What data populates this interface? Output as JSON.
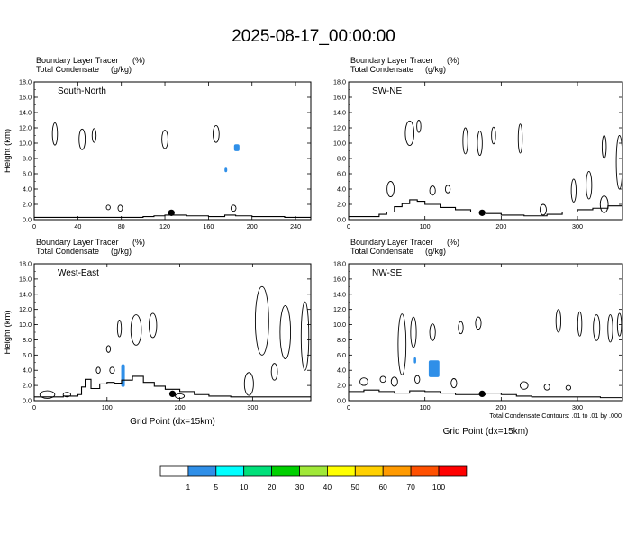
{
  "title": "2025-08-17_00:00:00",
  "colors": {
    "tracer": "#2f8fe8",
    "contour": "#000000"
  },
  "panels": [
    {
      "label": "South-North",
      "var1": "Boundary Layer Tracer",
      "unit1": "(%)",
      "var2": "Total Condensate",
      "unit2": "(g/kg)",
      "ylabel": "Height (km)",
      "xlabel": "",
      "ylim": [
        0,
        18
      ],
      "yticks": [
        "0.0",
        "2.0",
        "4.0",
        "6.0",
        "8.0",
        "10.0",
        "12.0",
        "14.0",
        "16.0",
        "18.0"
      ],
      "xlim": [
        0,
        254
      ],
      "xticks": [
        0,
        40,
        80,
        120,
        160,
        200,
        240
      ],
      "marker_x": 126,
      "pbl_height_km": [
        [
          0,
          0.3
        ],
        [
          30,
          0.3
        ],
        [
          60,
          0.3
        ],
        [
          90,
          0.3
        ],
        [
          100,
          0.4
        ],
        [
          110,
          0.5
        ],
        [
          120,
          0.6
        ],
        [
          140,
          0.5
        ],
        [
          160,
          0.4
        ],
        [
          175,
          0.6
        ],
        [
          185,
          0.5
        ],
        [
          200,
          0.4
        ],
        [
          230,
          0.3
        ],
        [
          254,
          0.3
        ]
      ],
      "tracer_blobs": [
        {
          "x": 186,
          "y": 9.4,
          "w": 5,
          "h": 0.9
        },
        {
          "x": 176,
          "y": 6.5,
          "w": 2.5,
          "h": 0.6
        }
      ],
      "clouds": [
        {
          "x": 19,
          "y": 11.2,
          "w": 3,
          "h": 2.9
        },
        {
          "x": 44,
          "y": 10.5,
          "w": 4,
          "h": 2.7
        },
        {
          "x": 55,
          "y": 11.0,
          "w": 2,
          "h": 1.8
        },
        {
          "x": 120,
          "y": 10.5,
          "w": 4,
          "h": 2.4
        },
        {
          "x": 167,
          "y": 11.2,
          "w": 4,
          "h": 2.2
        },
        {
          "x": 68,
          "y": 1.6,
          "w": 2,
          "h": 0.6
        },
        {
          "x": 79,
          "y": 1.5,
          "w": 2.5,
          "h": 0.8
        },
        {
          "x": 183,
          "y": 1.5,
          "w": 3,
          "h": 0.8
        }
      ]
    },
    {
      "label": "SW-NE",
      "var1": "Boundary Layer Tracer",
      "unit1": "(%)",
      "var2": "Total Condensate",
      "unit2": "(g/kg)",
      "ylabel": "",
      "xlabel": "",
      "ylim": [
        0,
        18
      ],
      "yticks": [
        "0.0",
        "2.0",
        "4.0",
        "6.0",
        "8.0",
        "10.0",
        "12.0",
        "14.0",
        "16.0",
        "18.0"
      ],
      "xlim": [
        0,
        359
      ],
      "xticks": [
        0,
        100,
        200,
        300
      ],
      "marker_x": 175,
      "pbl_height_km": [
        [
          0,
          0.4
        ],
        [
          30,
          0.4
        ],
        [
          40,
          0.7
        ],
        [
          50,
          1.0
        ],
        [
          60,
          1.7
        ],
        [
          70,
          2.1
        ],
        [
          80,
          2.6
        ],
        [
          90,
          2.4
        ],
        [
          100,
          2.0
        ],
        [
          120,
          1.6
        ],
        [
          140,
          1.3
        ],
        [
          160,
          1.0
        ],
        [
          180,
          0.8
        ],
        [
          200,
          0.6
        ],
        [
          230,
          0.5
        ],
        [
          260,
          0.7
        ],
        [
          280,
          1.0
        ],
        [
          300,
          1.3
        ],
        [
          320,
          1.5
        ],
        [
          340,
          1.8
        ],
        [
          359,
          2.0
        ]
      ],
      "tracer_blobs": [],
      "clouds": [
        {
          "x": 80,
          "y": 11.3,
          "w": 9,
          "h": 3.2
        },
        {
          "x": 92,
          "y": 12.2,
          "w": 3,
          "h": 1.6
        },
        {
          "x": 153,
          "y": 10.3,
          "w": 4,
          "h": 3.4
        },
        {
          "x": 172,
          "y": 10.0,
          "w": 4,
          "h": 3.2
        },
        {
          "x": 190,
          "y": 11.0,
          "w": 3,
          "h": 2.2
        },
        {
          "x": 225,
          "y": 10.6,
          "w": 3,
          "h": 3.8
        },
        {
          "x": 335,
          "y": 9.5,
          "w": 3,
          "h": 3.0
        },
        {
          "x": 355,
          "y": 7.5,
          "w": 6,
          "h": 7.0
        },
        {
          "x": 55,
          "y": 4.0,
          "w": 7,
          "h": 2.0
        },
        {
          "x": 110,
          "y": 3.8,
          "w": 5,
          "h": 1.2
        },
        {
          "x": 130,
          "y": 4.0,
          "w": 4,
          "h": 1.0
        },
        {
          "x": 295,
          "y": 3.8,
          "w": 4,
          "h": 3.0
        },
        {
          "x": 315,
          "y": 4.5,
          "w": 5,
          "h": 3.6
        },
        {
          "x": 255,
          "y": 1.3,
          "w": 6,
          "h": 1.4
        },
        {
          "x": 335,
          "y": 2.0,
          "w": 8,
          "h": 2.2
        }
      ]
    },
    {
      "label": "West-East",
      "var1": "Boundary Layer Tracer",
      "unit1": "(%)",
      "var2": "Total Condensate",
      "unit2": "(g/kg)",
      "ylabel": "Height (km)",
      "xlabel": "Grid Point (dx=15km)",
      "ylim": [
        0,
        18
      ],
      "yticks": [
        "0.0",
        "2.0",
        "4.0",
        "6.0",
        "8.0",
        "10.0",
        "12.0",
        "14.0",
        "16.0",
        "18.0"
      ],
      "xlim": [
        0,
        380
      ],
      "xticks": [
        0,
        100,
        200,
        300
      ],
      "marker_x": 190,
      "pbl_height_km": [
        [
          0,
          0.5
        ],
        [
          40,
          0.6
        ],
        [
          60,
          0.8
        ],
        [
          65,
          1.8
        ],
        [
          70,
          2.8
        ],
        [
          78,
          1.6
        ],
        [
          90,
          2.2
        ],
        [
          100,
          2.4
        ],
        [
          110,
          2.3
        ],
        [
          120,
          2.7
        ],
        [
          135,
          3.2
        ],
        [
          150,
          2.4
        ],
        [
          165,
          1.9
        ],
        [
          180,
          1.5
        ],
        [
          200,
          1.2
        ],
        [
          220,
          0.8
        ],
        [
          240,
          0.6
        ],
        [
          270,
          0.5
        ],
        [
          300,
          0.5
        ],
        [
          340,
          0.5
        ],
        [
          380,
          0.4
        ]
      ],
      "tracer_blobs": [
        {
          "x": 122,
          "y": 3.3,
          "w": 5,
          "h": 3.0
        }
      ],
      "clouds": [
        {
          "x": 18,
          "y": 0.8,
          "w": 18,
          "h": 1.0
        },
        {
          "x": 45,
          "y": 0.8,
          "w": 8,
          "h": 0.6
        },
        {
          "x": 140,
          "y": 9.3,
          "w": 12,
          "h": 4.0
        },
        {
          "x": 163,
          "y": 9.9,
          "w": 8,
          "h": 3.2
        },
        {
          "x": 117,
          "y": 9.5,
          "w": 3,
          "h": 2.2
        },
        {
          "x": 102,
          "y": 6.8,
          "w": 3,
          "h": 0.9
        },
        {
          "x": 88,
          "y": 4.0,
          "w": 3,
          "h": 0.8
        },
        {
          "x": 107,
          "y": 4.0,
          "w": 4,
          "h": 0.8
        },
        {
          "x": 200,
          "y": 0.6,
          "w": 10,
          "h": 0.6
        },
        {
          "x": 313,
          "y": 10.5,
          "w": 16,
          "h": 9.0
        },
        {
          "x": 345,
          "y": 9.0,
          "w": 12,
          "h": 7.0
        },
        {
          "x": 372,
          "y": 8.5,
          "w": 8,
          "h": 9.0
        },
        {
          "x": 295,
          "y": 2.2,
          "w": 10,
          "h": 3.0
        },
        {
          "x": 330,
          "y": 3.8,
          "w": 6,
          "h": 2.2
        }
      ]
    },
    {
      "label": "NW-SE",
      "var1": "Boundary Layer Tracer",
      "unit1": "(%)",
      "var2": "Total Condensate",
      "unit2": "(g/kg)",
      "ylabel": "",
      "xlabel": "Grid Point (dx=15km)",
      "ylim": [
        0,
        18
      ],
      "yticks": [
        "0.0",
        "2.0",
        "4.0",
        "6.0",
        "8.0",
        "10.0",
        "12.0",
        "14.0",
        "16.0",
        "18.0"
      ],
      "xlim": [
        0,
        359
      ],
      "xticks": [
        0,
        100,
        200,
        300
      ],
      "marker_x": 175,
      "pbl_height_km": [
        [
          0,
          1.2
        ],
        [
          20,
          1.4
        ],
        [
          40,
          1.2
        ],
        [
          60,
          1.0
        ],
        [
          80,
          1.3
        ],
        [
          100,
          1.2
        ],
        [
          120,
          1.0
        ],
        [
          140,
          0.8
        ],
        [
          160,
          0.8
        ],
        [
          180,
          1.0
        ],
        [
          200,
          0.8
        ],
        [
          220,
          0.6
        ],
        [
          240,
          0.5
        ],
        [
          260,
          0.5
        ],
        [
          300,
          0.5
        ],
        [
          330,
          0.4
        ],
        [
          359,
          0.4
        ]
      ],
      "tracer_blobs": [
        {
          "x": 87,
          "y": 5.3,
          "w": 3,
          "h": 0.8
        },
        {
          "x": 112,
          "y": 4.2,
          "w": 14,
          "h": 2.2
        }
      ],
      "clouds": [
        {
          "x": 70,
          "y": 7.4,
          "w": 8,
          "h": 8.0
        },
        {
          "x": 85,
          "y": 9.0,
          "w": 5,
          "h": 4.0
        },
        {
          "x": 110,
          "y": 9.0,
          "w": 5,
          "h": 2.2
        },
        {
          "x": 147,
          "y": 9.6,
          "w": 4,
          "h": 1.6
        },
        {
          "x": 170,
          "y": 10.2,
          "w": 5,
          "h": 1.6
        },
        {
          "x": 275,
          "y": 10.5,
          "w": 4,
          "h": 3.0
        },
        {
          "x": 303,
          "y": 10.1,
          "w": 3,
          "h": 3.2
        },
        {
          "x": 325,
          "y": 9.6,
          "w": 6,
          "h": 3.4
        },
        {
          "x": 343,
          "y": 9.5,
          "w": 4,
          "h": 3.6
        },
        {
          "x": 355,
          "y": 10.0,
          "w": 3,
          "h": 3.0
        },
        {
          "x": 20,
          "y": 2.5,
          "w": 8,
          "h": 1.0
        },
        {
          "x": 45,
          "y": 2.8,
          "w": 5,
          "h": 0.8
        },
        {
          "x": 60,
          "y": 2.5,
          "w": 6,
          "h": 1.2
        },
        {
          "x": 90,
          "y": 2.8,
          "w": 4,
          "h": 1.0
        },
        {
          "x": 138,
          "y": 2.3,
          "w": 5,
          "h": 1.2
        },
        {
          "x": 230,
          "y": 2.0,
          "w": 8,
          "h": 1.0
        },
        {
          "x": 260,
          "y": 1.8,
          "w": 5,
          "h": 0.8
        },
        {
          "x": 288,
          "y": 1.7,
          "w": 4,
          "h": 0.6
        }
      ]
    }
  ],
  "contour_note": "Total Condensate Contours: .01 to .01 by .000",
  "colorbar": {
    "labels": [
      "1",
      "5",
      "10",
      "20",
      "30",
      "40",
      "50",
      "60",
      "70",
      "100"
    ],
    "colors": [
      "#ffffff",
      "#2f8fe8",
      "#00ffff",
      "#00e07a",
      "#00d000",
      "#a0e838",
      "#ffff00",
      "#ffd000",
      "#ff9a00",
      "#ff5000",
      "#ff0000"
    ]
  }
}
